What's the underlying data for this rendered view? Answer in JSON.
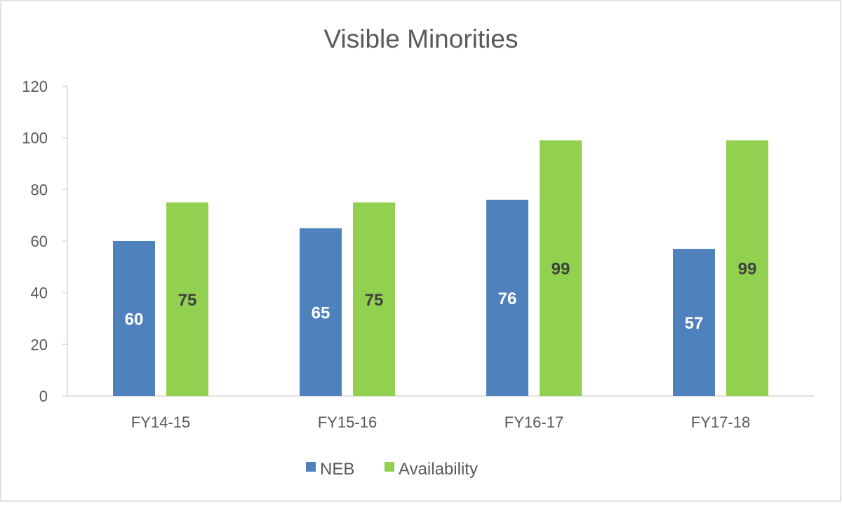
{
  "chart_data": {
    "type": "bar",
    "title": "Visible Minorities",
    "xlabel": "",
    "ylabel": "",
    "categories": [
      "FY14-15",
      "FY15-16",
      "FY16-17",
      "FY17-18"
    ],
    "series": [
      {
        "name": "NEB",
        "values": [
          60,
          65,
          76,
          57
        ],
        "color": "#4F81BD",
        "label_color": "#FFFFFF"
      },
      {
        "name": "Availability",
        "values": [
          75,
          75,
          99,
          99
        ],
        "color": "#92D050",
        "label_color": "#404040"
      }
    ],
    "ylim": [
      0,
      120
    ],
    "yticks": [
      0,
      20,
      40,
      60,
      80,
      100,
      120
    ],
    "grid": false,
    "legend": "bottom",
    "data_labels": true
  }
}
